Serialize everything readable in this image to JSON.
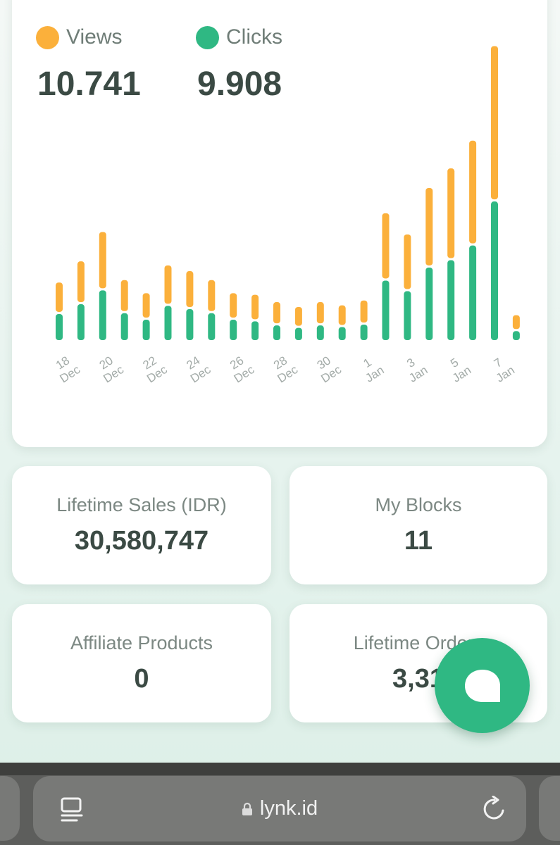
{
  "summary": {
    "views": {
      "label": "Views",
      "value": "10.741",
      "color": "#fbb03b"
    },
    "clicks": {
      "label": "Clicks",
      "value": "9.908",
      "color": "#2fb883"
    }
  },
  "chart_data": {
    "type": "bar",
    "stacked": true,
    "x": [
      "18 Dec",
      "19 Dec",
      "20 Dec",
      "21 Dec",
      "22 Dec",
      "23 Dec",
      "24 Dec",
      "25 Dec",
      "26 Dec",
      "27 Dec",
      "28 Dec",
      "29 Dec",
      "30 Dec",
      "31 Dec",
      "1 Jan",
      "2 Jan",
      "3 Jan",
      "4 Jan",
      "5 Jan",
      "6 Jan",
      "7 Jan",
      "8 Jan"
    ],
    "tick_labels": [
      {
        "day": "18",
        "month": "Dec"
      },
      {
        "day": "20",
        "month": "Dec"
      },
      {
        "day": "22",
        "month": "Dec"
      },
      {
        "day": "24",
        "month": "Dec"
      },
      {
        "day": "26",
        "month": "Dec"
      },
      {
        "day": "28",
        "month": "Dec"
      },
      {
        "day": "30",
        "month": "Dec"
      },
      {
        "day": "1",
        "month": "Jan"
      },
      {
        "day": "3",
        "month": "Jan"
      },
      {
        "day": "5",
        "month": "Jan"
      },
      {
        "day": "7",
        "month": "Jan"
      }
    ],
    "tick_every": 2,
    "series": [
      {
        "name": "Clicks",
        "color": "#2fb883",
        "values": [
          320,
          440,
          610,
          330,
          250,
          420,
          380,
          330,
          250,
          230,
          180,
          150,
          180,
          160,
          190,
          730,
          600,
          890,
          980,
          1160,
          1700,
          110
        ]
      },
      {
        "name": "Views",
        "color": "#fbb03b",
        "values": [
          360,
          500,
          690,
          380,
          300,
          470,
          440,
          380,
          300,
          300,
          260,
          230,
          260,
          240,
          270,
          800,
          670,
          950,
          1100,
          1260,
          1880,
          170
        ]
      }
    ],
    "ylim": [
      0,
      3800
    ],
    "grid": false,
    "legend": "top-left"
  },
  "tiles": [
    {
      "label": "Lifetime Sales (IDR)",
      "value": "30,580,747"
    },
    {
      "label": "My Blocks",
      "value": "11"
    },
    {
      "label": "Affiliate Products",
      "value": "0"
    },
    {
      "label": "Lifetime Orders",
      "value": "3,31"
    }
  ],
  "browser": {
    "url": "lynk.id",
    "icons": [
      "tabs-icon",
      "lock-icon",
      "reload-icon"
    ]
  },
  "fab": {
    "icon": "chat-bubble-icon",
    "color": "#2fb883"
  }
}
